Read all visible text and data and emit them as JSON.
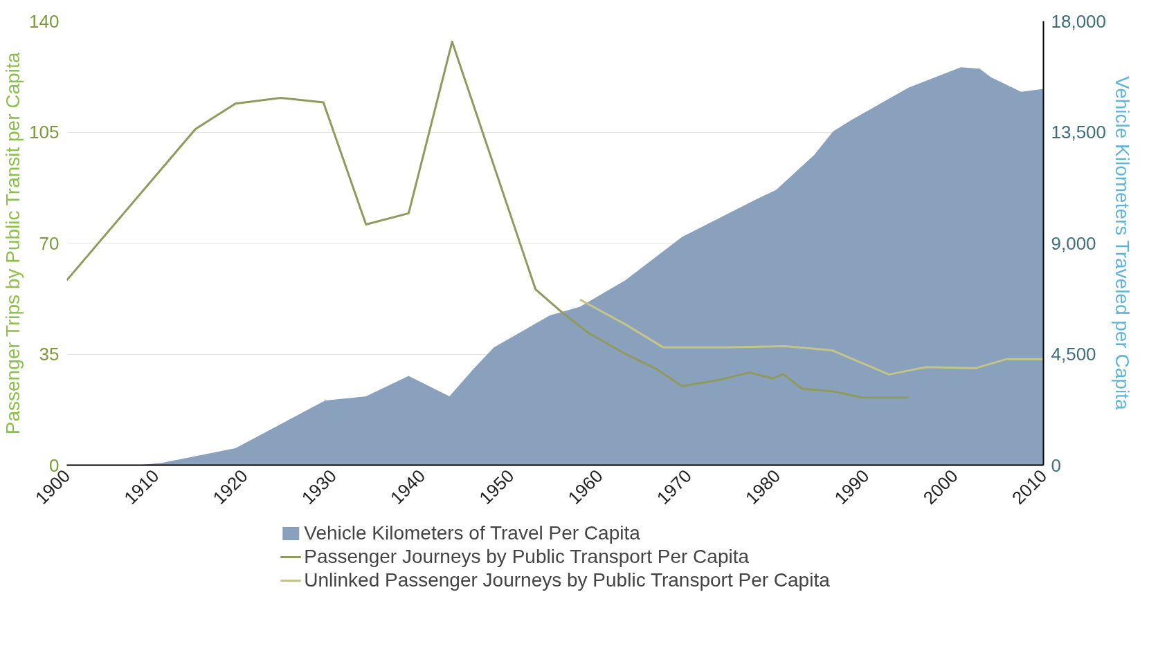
{
  "chart_data": {
    "type": "line",
    "ylabel": "Passenger Trips by Public Transit per Capita",
    "y2label": "Vehicle Kilometers Traveled per Capita",
    "xlim": [
      1900,
      2010
    ],
    "xticks": [
      1900,
      1910,
      1920,
      1930,
      1940,
      1950,
      1960,
      1970,
      1980,
      1990,
      2000,
      2010
    ],
    "ylim": [
      0,
      140
    ],
    "yticks": [
      0,
      35,
      70,
      105,
      140
    ],
    "y2lim": [
      0,
      18000
    ],
    "y2ticks": [
      0,
      {
        "value": 4500,
        "label": "4,500"
      },
      {
        "value": 9000,
        "label": "9,000"
      },
      {
        "value": 13500,
        "label": "13,500"
      },
      {
        "value": 18000,
        "label": "18,000"
      }
    ],
    "grid": "y",
    "legend": "bottom",
    "series": [
      {
        "name": "Vehicle Kilometers of Travel Per Capita",
        "type": "area",
        "axis": "y2",
        "color": "#8aa1bd",
        "x": [
          1900,
          1908,
          1910.7,
          1919,
          1929.1,
          1933.7,
          1938.5,
          1943.1,
          1945.8,
          1948.1,
          1954.4,
          1957.8,
          1962.9,
          1969.3,
          1977.8,
          1979.9,
          1984.2,
          1986.3,
          1988.4,
          1994.8,
          2000.7,
          2002.8,
          2004.1,
          2007.5,
          2010
        ],
        "values": [
          0,
          0,
          90,
          690,
          2620,
          2790,
          3620,
          2790,
          3900,
          4770,
          6070,
          6420,
          7490,
          9250,
          10800,
          11160,
          12580,
          13530,
          14000,
          15300,
          16130,
          16070,
          15720,
          15130,
          15250
        ]
      },
      {
        "name": "Passenger Journeys by Public Transport Per Capita",
        "color": "#8f9a5c",
        "x": [
          1900,
          1914.5,
          1919,
          1924.1,
          1928.9,
          1933.7,
          1938.5,
          1943.4,
          1952.8,
          1955.8,
          1958.8,
          1962.9,
          1966.3,
          1969.3,
          1973.5,
          1976.9,
          1979.5,
          1980.7,
          1982.8,
          1986.2,
          1989.6,
          1994.8
        ],
        "values": [
          58.3,
          106,
          114,
          115.8,
          114.4,
          75.9,
          79.4,
          133.5,
          55.4,
          48.1,
          41.6,
          35.1,
          30.5,
          24.9,
          26.9,
          29.2,
          27.3,
          28.7,
          24.1,
          23.3,
          21.3,
          21.3
        ]
      },
      {
        "name": "Unlinked Passenger Journeys by Public Transport Per Capita",
        "color": "#c4c48a",
        "x": [
          1957.8,
          1962.9,
          1967.2,
          1974,
          1980.9,
          1986.2,
          1992.6,
          1996.8,
          2002.4,
          2005.8,
          2010
        ],
        "values": [
          52.2,
          44.4,
          37.1,
          37.1,
          37.5,
          36.2,
          28.6,
          30.9,
          30.6,
          33.4,
          33.4
        ]
      }
    ]
  }
}
